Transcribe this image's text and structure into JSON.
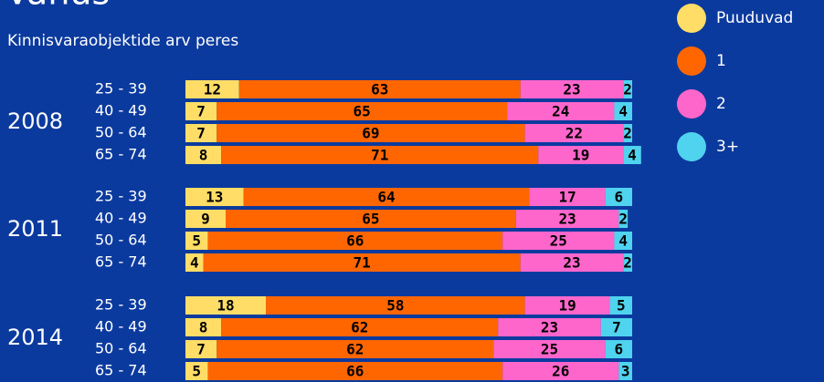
{
  "chart_data": {
    "type": "stacked-bar-horizontal",
    "title": "Vanus",
    "subtitle": "Kinnisvaraobjektide arv peres",
    "groups": [
      "2008",
      "2011",
      "2014"
    ],
    "categories": [
      "25 - 39",
      "40 - 49",
      "50 - 64",
      "65 - 74",
      "25 - 39",
      "40 - 49",
      "50 - 64",
      "65 - 74",
      "25 - 39",
      "40 - 49",
      "50 - 64",
      "65 - 74"
    ],
    "series": [
      {
        "name": "Puuduvad",
        "color": "#ffdd66",
        "values": [
          12,
          7,
          7,
          8,
          13,
          9,
          5,
          4,
          18,
          8,
          7,
          5
        ]
      },
      {
        "name": "1",
        "color": "#ff6600",
        "values": [
          63,
          65,
          69,
          71,
          64,
          65,
          66,
          71,
          58,
          62,
          62,
          66
        ]
      },
      {
        "name": "2",
        "color": "#ff66cc",
        "values": [
          23,
          24,
          22,
          19,
          17,
          23,
          25,
          23,
          19,
          23,
          25,
          26
        ]
      },
      {
        "name": "3+",
        "color": "#4fd3ee",
        "values": [
          2,
          4,
          2,
          4,
          6,
          2,
          4,
          2,
          5,
          7,
          6,
          3
        ]
      }
    ],
    "xlim": [
      0,
      100
    ],
    "legend": "top-right"
  }
}
